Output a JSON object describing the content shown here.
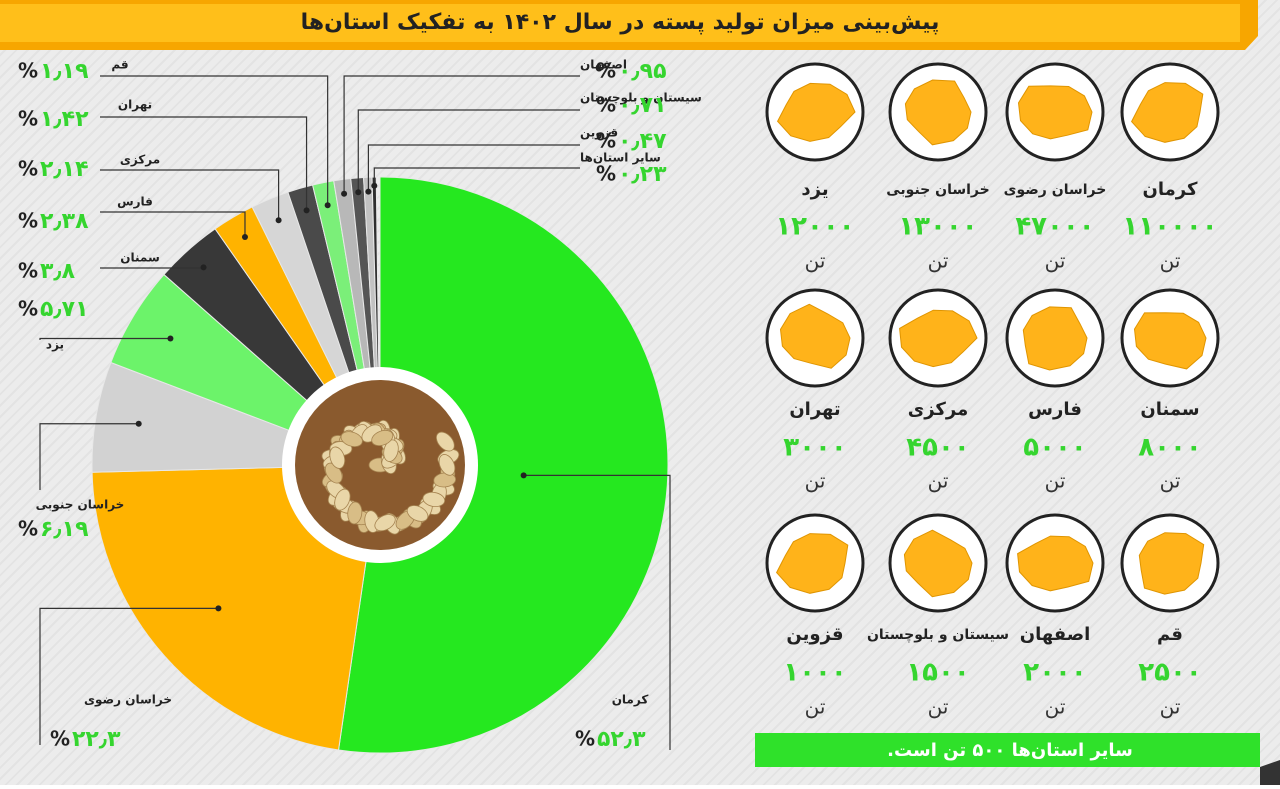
{
  "chart_data": {
    "type": "pie",
    "title": "پیش‌بینی میزان تولید پسته در سال ۱۴۰۲ به تفکیک استان‌ها",
    "unit": "%",
    "categories": [
      "کرمان",
      "خراسان رضوی",
      "خراسان جنوبی",
      "یزد",
      "سمنان",
      "فارس",
      "مرکزی",
      "تهران",
      "قم",
      "اصفهان",
      "سیستان و بلوچستان",
      "قزوین",
      "سایر استان‌ها"
    ],
    "values": [
      52.3,
      22.3,
      6.19,
      5.71,
      3.8,
      2.38,
      2.14,
      1.42,
      1.19,
      0.95,
      0.71,
      0.47,
      0.23
    ],
    "value_labels": [
      "۵۲٫۳",
      "۲۲٫۳",
      "۶٫۱۹",
      "۵٫۷۱",
      "۳٫۸",
      "۲٫۳۸",
      "۲٫۱۴",
      "۱٫۴۲",
      "۱٫۱۹",
      "۰٫۹۵",
      "۰٫۷۱",
      "۰٫۴۷",
      "۰٫۲۳"
    ],
    "colors": [
      "#25e81f",
      "#ffb300",
      "#d2d2d2",
      "#6cf36a",
      "#383838",
      "#ffb300",
      "#d6d6d6",
      "#4a4a4a",
      "#7bef79",
      "#b8b8b8",
      "#555555",
      "#c2c2c2",
      "#2e2e2e"
    ]
  },
  "provinces": {
    "unit": "تن",
    "items": [
      {
        "name": "کرمان",
        "amount": "۱۱۰۰۰۰"
      },
      {
        "name": "خراسان رضوی",
        "amount": "۴۷۰۰۰"
      },
      {
        "name": "خراسان جنوبی",
        "amount": "۱۳۰۰۰"
      },
      {
        "name": "یزد",
        "amount": "۱۲۰۰۰"
      },
      {
        "name": "سمنان",
        "amount": "۸۰۰۰"
      },
      {
        "name": "فارس",
        "amount": "۵۰۰۰"
      },
      {
        "name": "مرکزی",
        "amount": "۴۵۰۰"
      },
      {
        "name": "تهران",
        "amount": "۳۰۰۰"
      },
      {
        "name": "قم",
        "amount": "۲۵۰۰"
      },
      {
        "name": "اصفهان",
        "amount": "۲۰۰۰"
      },
      {
        "name": "سیستان و بلوچستان",
        "amount": "۱۵۰۰"
      },
      {
        "name": "قزوین",
        "amount": "۱۰۰۰"
      }
    ]
  },
  "footer": "سایر استان‌ها ۵۰۰ تن است."
}
